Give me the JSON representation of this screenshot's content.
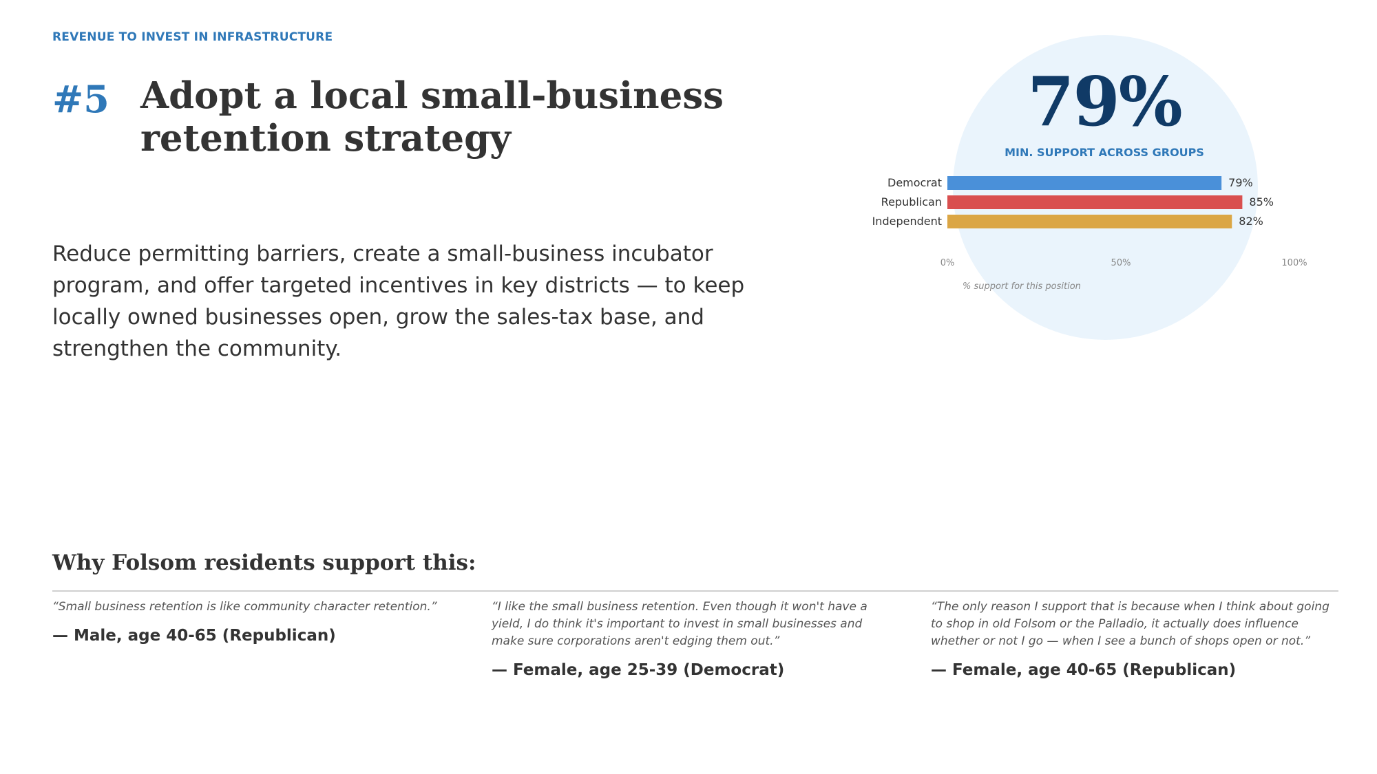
{
  "eyebrow": "REVENUE TO INVEST IN INFRASTRUCTURE",
  "rank": "#5",
  "title": "Adopt a local small-business retention strategy",
  "description": "Reduce permitting barriers, create a small-business incubator program, and offer targeted incentives in key districts — to keep locally owned businesses open, grow the sales-tax base, and strengthen the community.",
  "support": {
    "headline_value": "79%",
    "headline_caption": "MIN. SUPPORT ACROSS GROUPS"
  },
  "chart_data": {
    "type": "bar",
    "orientation": "horizontal",
    "categories": [
      "Democrat",
      "Republican",
      "Independent"
    ],
    "values": [
      79,
      85,
      82
    ],
    "value_labels": [
      "79%",
      "85%",
      "82%"
    ],
    "colors": [
      "#4a90d9",
      "#d94f4f",
      "#dba645"
    ],
    "xlim": [
      0,
      100
    ],
    "x_ticks": [
      0,
      50,
      100
    ],
    "x_tick_labels": [
      "0%",
      "50%",
      "100%"
    ],
    "xlabel": "% support for this position",
    "grid": false,
    "legend": "none"
  },
  "why": {
    "heading": "Why Folsom residents support this:",
    "quotes": [
      {
        "text": "“Small business retention is like community character retention.”",
        "attribution": "— Male, age 40-65 (Republican)"
      },
      {
        "text": "“I like the small business retention. Even though it won't have a yield, I do think it's important to invest in small businesses and make sure corporations aren't edging them out.”",
        "attribution": "— Female, age 25-39 (Democrat)"
      },
      {
        "text": "“The only reason I support that is because when I think about going to shop in old Folsom or the Palladio, it actually does influence whether or not I go — when I see a bunch of shops open or not.”",
        "attribution": "— Female, age 40-65 (Republican)"
      }
    ]
  }
}
